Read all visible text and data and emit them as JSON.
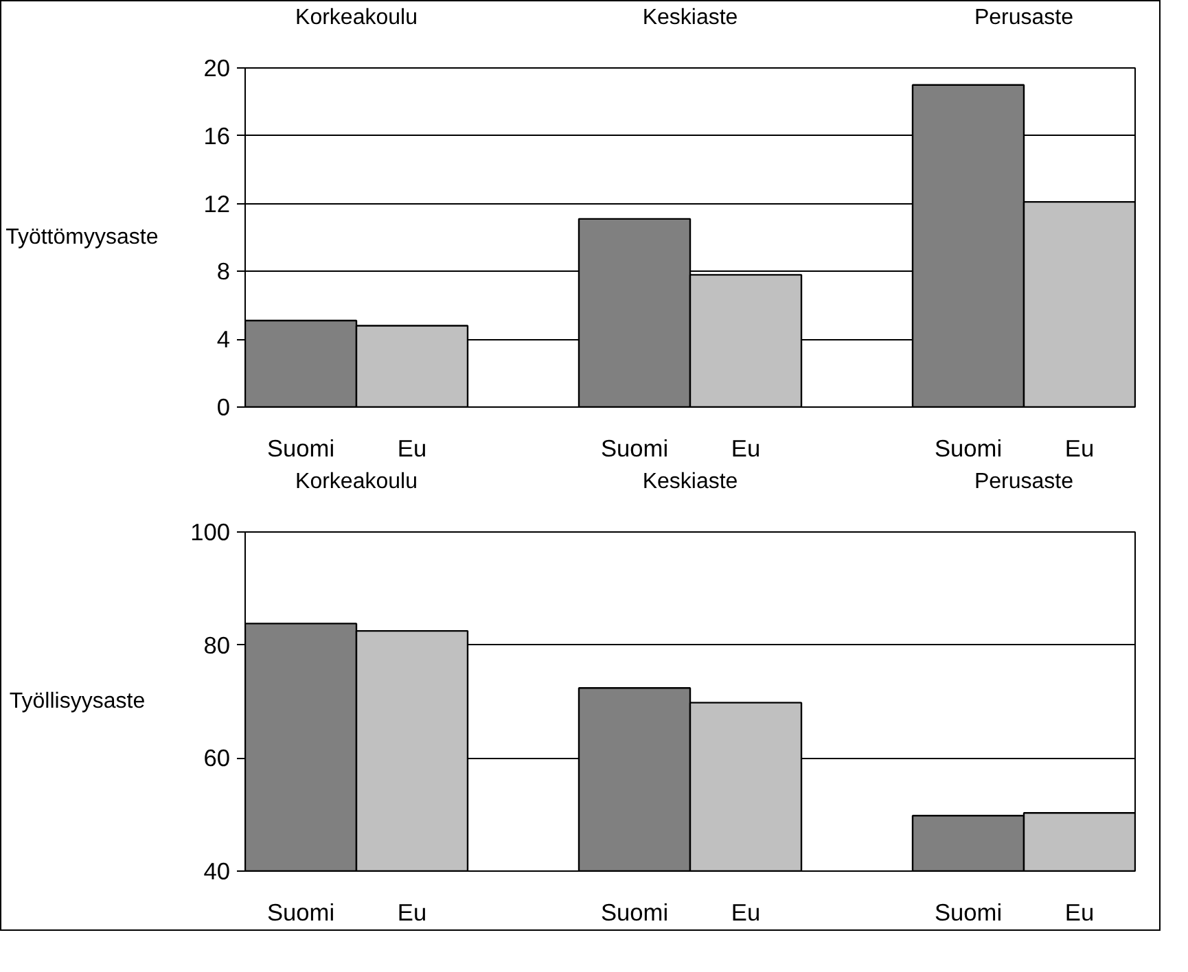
{
  "chart_data": [
    {
      "type": "bar",
      "ylabel": "Työttömyysaste",
      "categories": [
        "Suomi",
        "Eu",
        "Suomi",
        "Eu",
        "Suomi",
        "Eu"
      ],
      "values": [
        5.1,
        4.8,
        11.1,
        7.8,
        19.0,
        12.1
      ],
      "colors": [
        "#808080",
        "#c0c0c0",
        "#808080",
        "#c0c0c0",
        "#808080",
        "#c0c0c0"
      ],
      "annotations": [
        "Korkeakoulu",
        "Keskiaste",
        "Perusaste"
      ],
      "ylim": [
        0,
        20
      ],
      "yticks": [
        0,
        4,
        8,
        12,
        16,
        20
      ],
      "grid": "y"
    },
    {
      "type": "bar",
      "ylabel": "Työllisyysaste",
      "categories": [
        "Suomi",
        "Eu",
        "Suomi",
        "Eu",
        "Suomi",
        "Eu"
      ],
      "values": [
        83.8,
        82.5,
        72.4,
        69.8,
        49.8,
        50.3
      ],
      "colors": [
        "#808080",
        "#c0c0c0",
        "#808080",
        "#c0c0c0",
        "#808080",
        "#c0c0c0"
      ],
      "annotations": [
        "Korkeakoulu",
        "Keskiaste",
        "Perusaste"
      ],
      "ylim": [
        40,
        100
      ],
      "yticks": [
        40,
        60,
        80,
        100
      ],
      "grid": "y"
    }
  ]
}
